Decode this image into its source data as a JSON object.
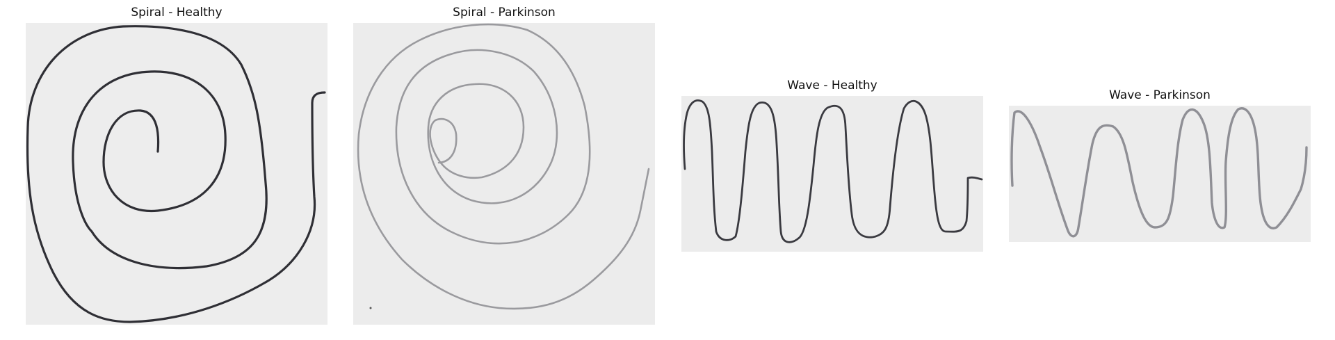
{
  "figure": {
    "panels": [
      {
        "title": "Spiral - Healthy"
      },
      {
        "title": "Spiral - Parkinson"
      },
      {
        "title": "Wave - Healthy"
      },
      {
        "title": "Wave - Parkinson"
      }
    ]
  }
}
